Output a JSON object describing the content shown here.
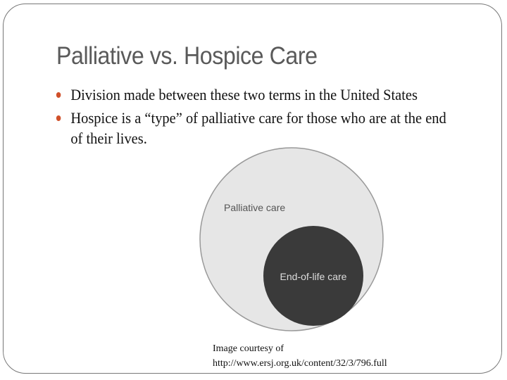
{
  "slide": {
    "title": "Palliative vs. Hospice Care",
    "bullets": [
      "Division made between these two terms in the United States",
      "Hospice is a “type” of palliative care for those who are at the end of their lives."
    ],
    "bullet_color": "#d0502a",
    "diagram": {
      "outer_label": "Palliative care",
      "inner_label": "End-of-life care",
      "outer_fill": "#e6e6e6",
      "inner_fill": "#3a3a3a"
    },
    "caption": {
      "line1": "Image courtesy of",
      "line2": "http://www.ersj.org.uk/content/32/3/796.full"
    }
  }
}
